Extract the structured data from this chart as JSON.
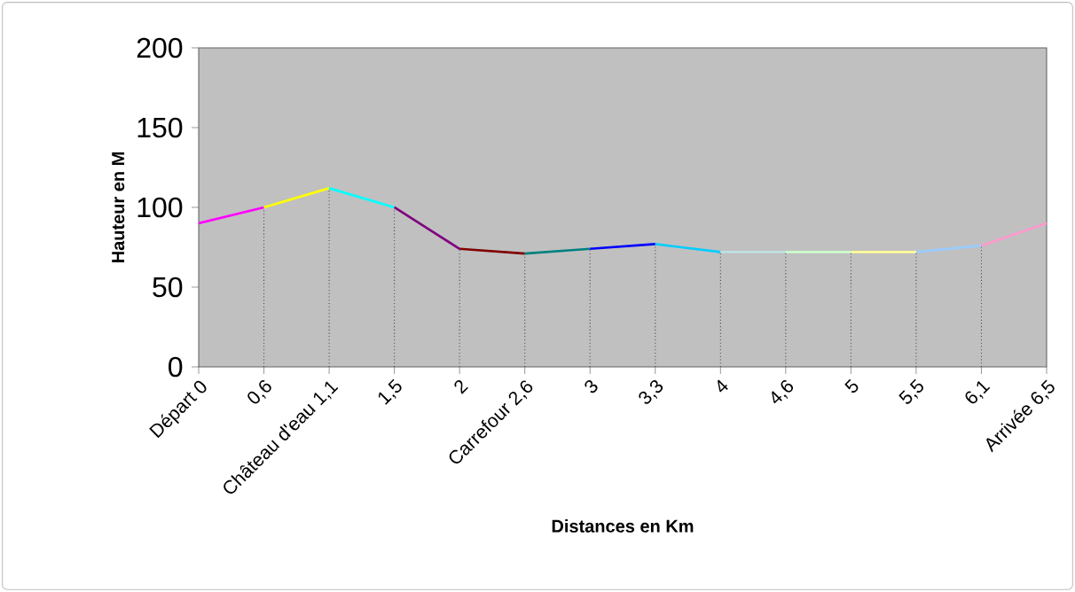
{
  "chart_data": {
    "type": "line",
    "xlabel": "Distances en Km",
    "ylabel": "Hauteur en M",
    "categories": [
      "Départ 0",
      "0,6",
      "Château d'eau 1,1",
      "1,5",
      "2",
      "Carrefour 2,6",
      "3",
      "3,3",
      "4",
      "4,6",
      "5",
      "5,5",
      "6,1",
      "Arrivée 6,5"
    ],
    "series": [
      {
        "color": "#ff00ff",
        "values": [
          90,
          100,
          null,
          null,
          null,
          null,
          null,
          null,
          null,
          null,
          null,
          null,
          null,
          null
        ]
      },
      {
        "color": "#ffff00",
        "values": [
          null,
          100,
          112,
          null,
          null,
          null,
          null,
          null,
          null,
          null,
          null,
          null,
          null,
          null
        ]
      },
      {
        "color": "#00ffff",
        "values": [
          null,
          null,
          112,
          100,
          null,
          null,
          null,
          null,
          null,
          null,
          null,
          null,
          null,
          null
        ]
      },
      {
        "color": "#800080",
        "values": [
          null,
          null,
          null,
          100,
          74,
          null,
          null,
          null,
          null,
          null,
          null,
          null,
          null,
          null
        ]
      },
      {
        "color": "#800000",
        "values": [
          null,
          null,
          null,
          null,
          74,
          71,
          null,
          null,
          null,
          null,
          null,
          null,
          null,
          null
        ]
      },
      {
        "color": "#008080",
        "values": [
          null,
          null,
          null,
          null,
          null,
          71,
          74,
          null,
          null,
          null,
          null,
          null,
          null,
          null
        ]
      },
      {
        "color": "#0000ff",
        "values": [
          null,
          null,
          null,
          null,
          null,
          null,
          74,
          77,
          null,
          null,
          null,
          null,
          null,
          null
        ]
      },
      {
        "color": "#00ccff",
        "values": [
          null,
          null,
          null,
          null,
          null,
          null,
          null,
          77,
          72,
          null,
          null,
          null,
          null,
          null
        ]
      },
      {
        "color": "#c0e0e0",
        "values": [
          null,
          null,
          null,
          null,
          null,
          null,
          null,
          null,
          72,
          72,
          null,
          null,
          null,
          null
        ]
      },
      {
        "color": "#ccffcc",
        "values": [
          null,
          null,
          null,
          null,
          null,
          null,
          null,
          null,
          null,
          72,
          72,
          null,
          null,
          null
        ]
      },
      {
        "color": "#ffff99",
        "values": [
          null,
          null,
          null,
          null,
          null,
          null,
          null,
          null,
          null,
          null,
          72,
          72,
          null,
          null
        ]
      },
      {
        "color": "#99ccff",
        "values": [
          null,
          null,
          null,
          null,
          null,
          null,
          null,
          null,
          null,
          null,
          null,
          72,
          76,
          null
        ]
      },
      {
        "color": "#ff99cc",
        "values": [
          null,
          null,
          null,
          null,
          null,
          null,
          null,
          null,
          null,
          null,
          null,
          null,
          76,
          90
        ]
      }
    ],
    "ref_lines": [
      {
        "axis": "x",
        "value": "0,6",
        "color": "#464646",
        "line_style": "dotted"
      },
      {
        "axis": "x",
        "value": "Château d'eau 1,1",
        "color": "#464646",
        "line_style": "dotted"
      },
      {
        "axis": "x",
        "value": "1,5",
        "color": "#464646",
        "line_style": "dotted"
      },
      {
        "axis": "x",
        "value": "2",
        "color": "#464646",
        "line_style": "dotted"
      },
      {
        "axis": "x",
        "value": "Carrefour 2,6",
        "color": "#464646",
        "line_style": "dotted"
      },
      {
        "axis": "x",
        "value": "3",
        "color": "#464646",
        "line_style": "dotted"
      },
      {
        "axis": "x",
        "value": "3,3",
        "color": "#464646",
        "line_style": "dotted"
      },
      {
        "axis": "x",
        "value": "4",
        "color": "#464646",
        "line_style": "dotted"
      },
      {
        "axis": "x",
        "value": "4,6",
        "color": "#464646",
        "line_style": "dotted"
      },
      {
        "axis": "x",
        "value": "5",
        "color": "#464646",
        "line_style": "dotted"
      },
      {
        "axis": "x",
        "value": "5,5",
        "color": "#464646",
        "line_style": "dotted"
      },
      {
        "axis": "x",
        "value": "6,1",
        "color": "#464646",
        "line_style": "dotted"
      }
    ],
    "ylim": [
      0,
      200
    ],
    "yticks": [
      0,
      50,
      100,
      150,
      200
    ]
  }
}
